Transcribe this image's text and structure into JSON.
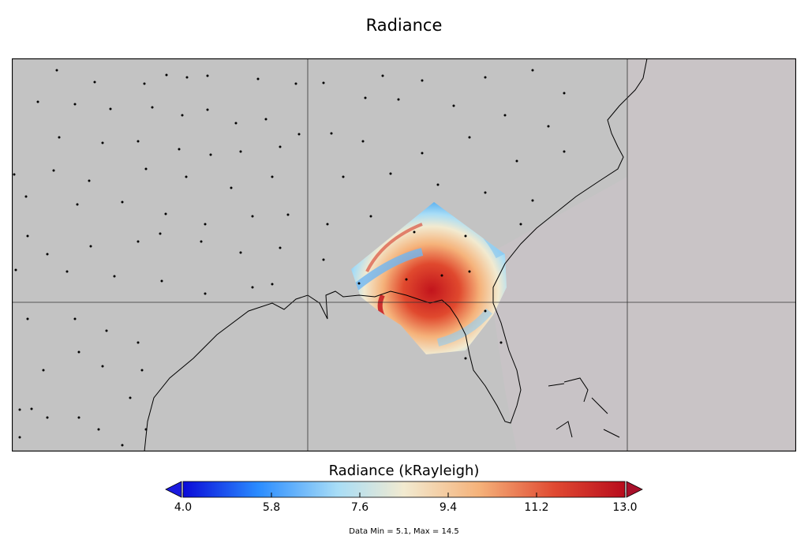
{
  "title": "Radiance",
  "colorbar": {
    "label": "Radiance (kRayleigh)",
    "min": 4.0,
    "max": 13.0,
    "ticks": [
      "4.0",
      "5.8",
      "7.6",
      "9.4",
      "11.2",
      "13.0"
    ],
    "colors": [
      "#0a0ad8",
      "#2a8cff",
      "#a8ddf6",
      "#f2ead0",
      "#f5b27a",
      "#e04a32",
      "#b80c1c"
    ]
  },
  "data_summary": "Data Min = 5.1, Max = 14.5",
  "map": {
    "background_color": "#c3c3c3",
    "coast_color": "#000000"
  }
}
